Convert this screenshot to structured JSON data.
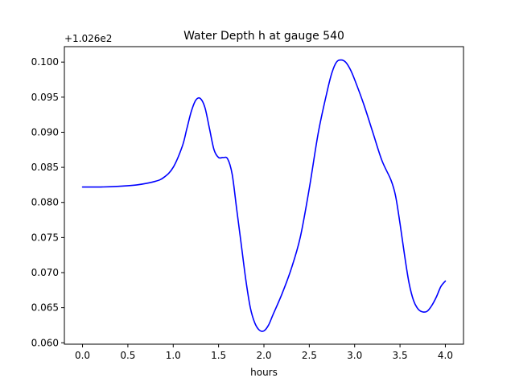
{
  "chart_data": {
    "type": "line",
    "title": "Water Depth h at gauge 540",
    "xlabel": "hours",
    "ylabel": "",
    "y_offset_label": "+1.026e2",
    "xlim": [
      -0.2,
      4.2
    ],
    "ylim": [
      0.0598,
      0.1022
    ],
    "x_ticks": [
      0.0,
      0.5,
      1.0,
      1.5,
      2.0,
      2.5,
      3.0,
      3.5,
      4.0
    ],
    "x_tick_labels": [
      "0.0",
      "0.5",
      "1.0",
      "1.5",
      "2.0",
      "2.5",
      "3.0",
      "3.5",
      "4.0"
    ],
    "y_ticks": [
      0.06,
      0.065,
      0.07,
      0.075,
      0.08,
      0.085,
      0.09,
      0.095,
      0.1
    ],
    "y_tick_labels": [
      "0.060",
      "0.065",
      "0.070",
      "0.075",
      "0.080",
      "0.085",
      "0.090",
      "0.095",
      "0.100"
    ],
    "grid": false,
    "series": [
      {
        "color": "#0000ff",
        "x": [
          0.0,
          0.2,
          0.4,
          0.6,
          0.8,
          0.9,
          1.0,
          1.1,
          1.15,
          1.2,
          1.25,
          1.3,
          1.35,
          1.4,
          1.45,
          1.5,
          1.55,
          1.6,
          1.65,
          1.7,
          1.75,
          1.8,
          1.85,
          1.9,
          1.95,
          2.0,
          2.05,
          2.1,
          2.2,
          2.3,
          2.4,
          2.5,
          2.6,
          2.7,
          2.75,
          2.8,
          2.85,
          2.9,
          2.95,
          3.0,
          3.1,
          3.2,
          3.3,
          3.4,
          3.45,
          3.5,
          3.55,
          3.6,
          3.65,
          3.7,
          3.75,
          3.8,
          3.85,
          3.9,
          3.95,
          4.0
        ],
        "y": [
          0.0822,
          0.0822,
          0.0823,
          0.0825,
          0.083,
          0.0836,
          0.085,
          0.088,
          0.0905,
          0.093,
          0.0946,
          0.0948,
          0.0935,
          0.0905,
          0.0875,
          0.0864,
          0.0864,
          0.0862,
          0.084,
          0.079,
          0.074,
          0.069,
          0.065,
          0.0628,
          0.0618,
          0.0617,
          0.0625,
          0.064,
          0.067,
          0.0705,
          0.075,
          0.082,
          0.09,
          0.096,
          0.0985,
          0.1,
          0.1003,
          0.1,
          0.099,
          0.0975,
          0.094,
          0.09,
          0.086,
          0.0832,
          0.081,
          0.077,
          0.0725,
          0.0685,
          0.066,
          0.0648,
          0.0644,
          0.0645,
          0.0653,
          0.0665,
          0.068,
          0.0688
        ]
      }
    ]
  }
}
